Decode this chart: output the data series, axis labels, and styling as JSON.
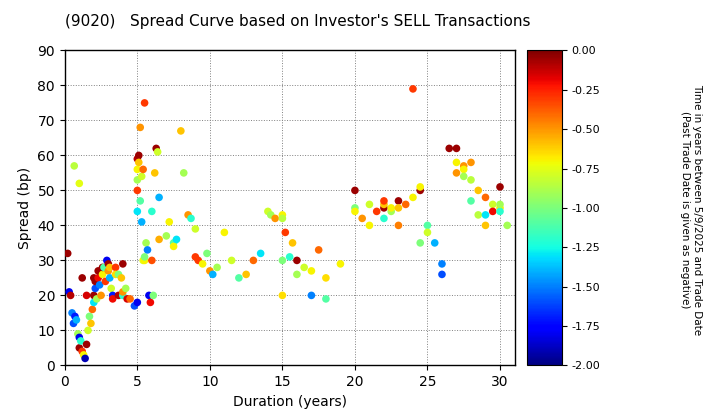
{
  "title": "(9020)   Spread Curve based on Investor's SELL Transactions",
  "xlabel": "Duration (years)",
  "ylabel": "Spread (bp)",
  "xlim": [
    0,
    31
  ],
  "ylim": [
    0,
    90
  ],
  "xticks": [
    0,
    5,
    10,
    15,
    20,
    25,
    30
  ],
  "yticks": [
    0,
    10,
    20,
    30,
    40,
    50,
    60,
    70,
    80,
    90
  ],
  "colorbar_label_line1": "Time in years between 5/9/2025 and Trade Date",
  "colorbar_label_line2": "(Past Trade Date is given as negative)",
  "cmap": "jet",
  "vmin": -2.0,
  "vmax": 0.0,
  "cbar_ticks": [
    0.0,
    -0.25,
    -0.5,
    -0.75,
    -1.0,
    -1.25,
    -1.5,
    -1.75,
    -2.0
  ],
  "marker_size": 30,
  "points": [
    [
      0.2,
      32,
      -0.05
    ],
    [
      0.3,
      21,
      -1.8
    ],
    [
      0.4,
      20,
      -0.1
    ],
    [
      0.5,
      15,
      -1.5
    ],
    [
      0.6,
      12,
      -1.6
    ],
    [
      0.65,
      57,
      -0.85
    ],
    [
      0.7,
      14,
      -1.7
    ],
    [
      0.8,
      13,
      -1.4
    ],
    [
      0.9,
      9,
      -0.9
    ],
    [
      1.0,
      8,
      -1.8
    ],
    [
      1.0,
      5,
      -0.05
    ],
    [
      1.0,
      52,
      -0.75
    ],
    [
      1.1,
      7,
      -1.2
    ],
    [
      1.2,
      4,
      -0.3
    ],
    [
      1.2,
      25,
      -0.05
    ],
    [
      1.3,
      3,
      -0.7
    ],
    [
      1.4,
      2,
      -1.9
    ],
    [
      1.5,
      6,
      -0.05
    ],
    [
      1.5,
      20,
      -0.15
    ],
    [
      1.6,
      10,
      -0.8
    ],
    [
      1.7,
      14,
      -1.0
    ],
    [
      1.8,
      12,
      -0.6
    ],
    [
      1.9,
      16,
      -0.4
    ],
    [
      2.0,
      20,
      -0.05
    ],
    [
      2.0,
      18,
      -1.3
    ],
    [
      2.0,
      25,
      -0.05
    ],
    [
      2.1,
      22,
      -1.6
    ],
    [
      2.1,
      24,
      -0.05
    ],
    [
      2.2,
      19,
      -0.9
    ],
    [
      2.3,
      25,
      -0.2
    ],
    [
      2.3,
      27,
      -0.05
    ],
    [
      2.4,
      23,
      -1.5
    ],
    [
      2.5,
      27,
      -0.05
    ],
    [
      2.5,
      20,
      -0.5
    ],
    [
      2.6,
      26,
      -0.7
    ],
    [
      2.6,
      28,
      -0.05
    ],
    [
      2.7,
      28,
      -1.1
    ],
    [
      2.8,
      24,
      -0.3
    ],
    [
      2.9,
      30,
      -1.8
    ],
    [
      3.0,
      29,
      -0.05
    ],
    [
      3.0,
      27,
      -0.5
    ],
    [
      3.1,
      25,
      -1.4
    ],
    [
      3.1,
      28,
      -0.6
    ],
    [
      3.2,
      22,
      -0.8
    ],
    [
      3.3,
      20,
      -1.7
    ],
    [
      3.3,
      19,
      -0.2
    ],
    [
      3.5,
      28,
      -0.3
    ],
    [
      3.5,
      26,
      -0.65
    ],
    [
      3.7,
      26,
      -1.0
    ],
    [
      3.7,
      20,
      -0.1
    ],
    [
      3.9,
      25,
      -0.6
    ],
    [
      4.0,
      29,
      -0.05
    ],
    [
      4.0,
      20,
      -1.2
    ],
    [
      4.0,
      21,
      -0.5
    ],
    [
      4.2,
      22,
      -0.9
    ],
    [
      4.3,
      19,
      -0.15
    ],
    [
      4.5,
      19,
      -0.4
    ],
    [
      4.8,
      17,
      -1.6
    ],
    [
      5.0,
      59,
      -0.1
    ],
    [
      5.0,
      56,
      -0.7
    ],
    [
      5.0,
      53,
      -0.9
    ],
    [
      5.0,
      50,
      -0.3
    ],
    [
      5.0,
      44,
      -1.3
    ],
    [
      5.0,
      18,
      -1.8
    ],
    [
      5.1,
      60,
      -0.05
    ],
    [
      5.1,
      58,
      -0.6
    ],
    [
      5.2,
      68,
      -0.5
    ],
    [
      5.2,
      47,
      -1.1
    ],
    [
      5.3,
      54,
      -0.8
    ],
    [
      5.3,
      41,
      -1.4
    ],
    [
      5.4,
      56,
      -0.4
    ],
    [
      5.4,
      30,
      -0.75
    ],
    [
      5.5,
      75,
      -0.3
    ],
    [
      5.5,
      30,
      -0.7
    ],
    [
      5.5,
      31,
      -1.0
    ],
    [
      5.6,
      35,
      -0.9
    ],
    [
      5.7,
      33,
      -1.5
    ],
    [
      5.8,
      20,
      -1.8
    ],
    [
      5.9,
      18,
      -0.2
    ],
    [
      6.0,
      44,
      -1.2
    ],
    [
      6.0,
      30,
      -0.35
    ],
    [
      6.1,
      20,
      -1.0
    ],
    [
      6.2,
      55,
      -0.6
    ],
    [
      6.3,
      62,
      -0.05
    ],
    [
      6.4,
      61,
      -0.8
    ],
    [
      6.5,
      48,
      -1.4
    ],
    [
      6.5,
      36,
      -0.55
    ],
    [
      7.0,
      37,
      -0.9
    ],
    [
      7.2,
      41,
      -0.7
    ],
    [
      7.5,
      35,
      -1.1
    ],
    [
      7.5,
      34,
      -0.7
    ],
    [
      7.7,
      36,
      -1.3
    ],
    [
      8.0,
      67,
      -0.6
    ],
    [
      8.2,
      55,
      -0.9
    ],
    [
      8.5,
      43,
      -0.5
    ],
    [
      8.7,
      42,
      -1.2
    ],
    [
      9.0,
      39,
      -0.8
    ],
    [
      9.0,
      31,
      -0.3
    ],
    [
      9.2,
      30,
      -0.3
    ],
    [
      9.5,
      29,
      -0.7
    ],
    [
      9.8,
      32,
      -1.0
    ],
    [
      10.0,
      27,
      -0.5
    ],
    [
      10.2,
      26,
      -1.4
    ],
    [
      10.5,
      28,
      -0.9
    ],
    [
      11.0,
      38,
      -0.7
    ],
    [
      11.5,
      30,
      -0.8
    ],
    [
      12.0,
      25,
      -1.1
    ],
    [
      12.5,
      26,
      -0.6
    ],
    [
      13.0,
      30,
      -0.4
    ],
    [
      13.5,
      32,
      -1.3
    ],
    [
      14.0,
      44,
      -0.8
    ],
    [
      14.2,
      43,
      -0.9
    ],
    [
      14.5,
      42,
      -0.5
    ],
    [
      15.0,
      43,
      -0.7
    ],
    [
      15.0,
      42,
      -0.85
    ],
    [
      15.0,
      30,
      -1.0
    ],
    [
      15.0,
      20,
      -0.65
    ],
    [
      15.2,
      38,
      -0.3
    ],
    [
      15.5,
      31,
      -1.2
    ],
    [
      15.7,
      35,
      -0.6
    ],
    [
      16.0,
      26,
      -0.9
    ],
    [
      16.0,
      30,
      -0.05
    ],
    [
      16.5,
      28,
      -0.8
    ],
    [
      17.0,
      27,
      -0.7
    ],
    [
      17.0,
      20,
      -1.5
    ],
    [
      17.5,
      33,
      -0.4
    ],
    [
      18.0,
      19,
      -1.1
    ],
    [
      18.0,
      25,
      -0.65
    ],
    [
      19.0,
      29,
      -0.7
    ],
    [
      20.0,
      50,
      -0.05
    ],
    [
      20.0,
      45,
      -1.0
    ],
    [
      20.0,
      44,
      -0.7
    ],
    [
      20.5,
      42,
      -0.5
    ],
    [
      21.0,
      46,
      -0.8
    ],
    [
      21.0,
      40,
      -0.7
    ],
    [
      21.5,
      44,
      -0.3
    ],
    [
      22.0,
      45,
      -0.05
    ],
    [
      22.0,
      46,
      -0.6
    ],
    [
      22.0,
      47,
      -0.3
    ],
    [
      22.0,
      42,
      -1.2
    ],
    [
      22.5,
      44,
      -0.9
    ],
    [
      22.5,
      45,
      -0.7
    ],
    [
      23.0,
      47,
      -0.05
    ],
    [
      23.0,
      45,
      -0.6
    ],
    [
      23.0,
      40,
      -0.45
    ],
    [
      23.5,
      46,
      -0.4
    ],
    [
      24.0,
      79,
      -0.3
    ],
    [
      24.0,
      48,
      -0.7
    ],
    [
      24.5,
      50,
      -0.05
    ],
    [
      24.5,
      35,
      -1.0
    ],
    [
      24.5,
      51,
      -0.7
    ],
    [
      25.0,
      40,
      -1.1
    ],
    [
      25.0,
      38,
      -0.8
    ],
    [
      25.5,
      35,
      -1.4
    ],
    [
      26.0,
      29,
      -1.5
    ],
    [
      26.0,
      26,
      -1.6
    ],
    [
      26.5,
      62,
      -0.05
    ],
    [
      27.0,
      62,
      -0.05
    ],
    [
      27.0,
      55,
      -0.5
    ],
    [
      27.0,
      58,
      -0.7
    ],
    [
      27.5,
      57,
      -0.5
    ],
    [
      27.5,
      56,
      -0.7
    ],
    [
      27.5,
      54,
      -0.9
    ],
    [
      28.0,
      58,
      -0.5
    ],
    [
      28.0,
      53,
      -0.85
    ],
    [
      28.0,
      47,
      -1.1
    ],
    [
      28.5,
      50,
      -0.6
    ],
    [
      28.5,
      43,
      -0.85
    ],
    [
      29.0,
      48,
      -0.4
    ],
    [
      29.0,
      43,
      -1.3
    ],
    [
      29.0,
      40,
      -0.6
    ],
    [
      29.5,
      46,
      -0.8
    ],
    [
      29.5,
      44,
      -0.2
    ],
    [
      30.0,
      51,
      -0.05
    ],
    [
      30.0,
      45,
      -0.7
    ],
    [
      30.0,
      44,
      -1.2
    ],
    [
      30.0,
      46,
      -0.9
    ],
    [
      30.5,
      40,
      -0.9
    ]
  ]
}
